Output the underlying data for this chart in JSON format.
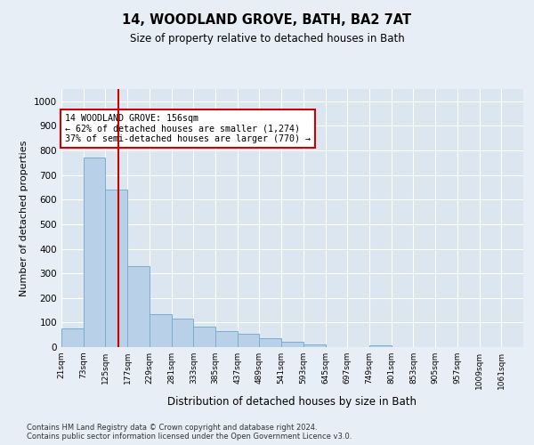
{
  "title": "14, WOODLAND GROVE, BATH, BA2 7AT",
  "subtitle": "Size of property relative to detached houses in Bath",
  "xlabel": "Distribution of detached houses by size in Bath",
  "ylabel": "Number of detached properties",
  "bar_edges": [
    21,
    73,
    125,
    177,
    229,
    281,
    333,
    385,
    437,
    489,
    541,
    593,
    645,
    697,
    749,
    801,
    853,
    905,
    957,
    1009,
    1061
  ],
  "bar_heights": [
    75,
    770,
    640,
    330,
    135,
    115,
    85,
    65,
    55,
    35,
    20,
    10,
    0,
    0,
    8,
    0,
    0,
    0,
    0,
    0,
    0
  ],
  "bar_color": "#b8d0e8",
  "bar_edgecolor": "#7aaecb",
  "property_size": 156,
  "vline_color": "#cc0000",
  "annotation_text": "14 WOODLAND GROVE: 156sqm\n← 62% of detached houses are smaller (1,274)\n37% of semi-detached houses are larger (770) →",
  "annotation_box_facecolor": "#ffffff",
  "annotation_box_edgecolor": "#cc0000",
  "ylim": [
    0,
    1050
  ],
  "yticks": [
    0,
    100,
    200,
    300,
    400,
    500,
    600,
    700,
    800,
    900,
    1000
  ],
  "background_color": "#dce6f0",
  "grid_color": "#ffffff",
  "footnote": "Contains HM Land Registry data © Crown copyright and database right 2024.\nContains public sector information licensed under the Open Government Licence v3.0.",
  "tick_labels": [
    "21sqm",
    "73sqm",
    "125sqm",
    "177sqm",
    "229sqm",
    "281sqm",
    "333sqm",
    "385sqm",
    "437sqm",
    "489sqm",
    "541sqm",
    "593sqm",
    "645sqm",
    "697sqm",
    "749sqm",
    "801sqm",
    "853sqm",
    "905sqm",
    "957sqm",
    "1009sqm",
    "1061sqm"
  ],
  "fig_facecolor": "#e8eef5"
}
